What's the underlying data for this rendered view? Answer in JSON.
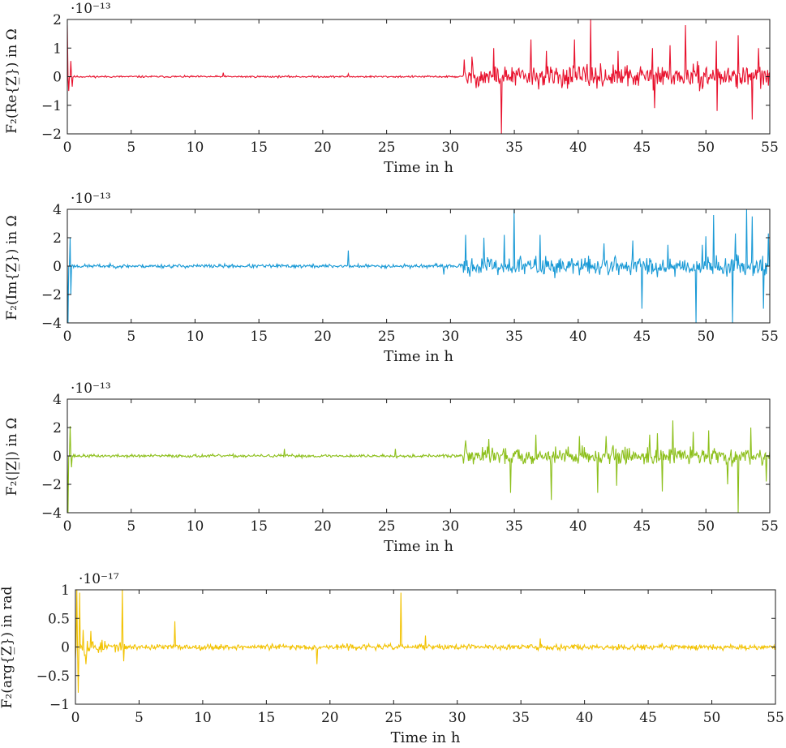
{
  "chart_data": [
    {
      "type": "line",
      "xlabel": "Time in h",
      "ylabel": "F₂(Re{Z̲}) in Ω",
      "y_multiplier": "·10⁻¹³",
      "xlim": [
        0,
        55
      ],
      "ylim": [
        -2,
        2
      ],
      "xticks": [
        0,
        5,
        10,
        15,
        20,
        25,
        30,
        35,
        40,
        45,
        50,
        55
      ],
      "yticks": [
        -2,
        -1,
        0,
        1,
        2
      ],
      "color": "#e8112d",
      "grid": false,
      "noise": {
        "seed": 11,
        "calm_end": 31,
        "calm_amp": 0.03,
        "active_amp": 0.35
      },
      "points": [
        [
          0.02,
          1.8
        ],
        [
          0.1,
          -0.5
        ],
        [
          0.25,
          0.55
        ],
        [
          0.4,
          -0.35
        ],
        [
          12.2,
          0.14
        ],
        [
          22.0,
          0.1
        ],
        [
          31.1,
          0.6
        ],
        [
          31.7,
          0.7
        ],
        [
          33.4,
          1.0
        ],
        [
          34.0,
          -2.0
        ],
        [
          36.3,
          1.3
        ],
        [
          37.5,
          0.9
        ],
        [
          39.7,
          1.3
        ],
        [
          41.0,
          2.0
        ],
        [
          43.1,
          0.9
        ],
        [
          45.8,
          1.0
        ],
        [
          46.0,
          -1.1
        ],
        [
          47.2,
          1.1
        ],
        [
          48.4,
          1.8
        ],
        [
          50.8,
          1.25
        ],
        [
          50.9,
          -1.2
        ],
        [
          52.5,
          1.45
        ],
        [
          53.6,
          -1.5
        ],
        [
          54.1,
          1.0
        ]
      ]
    },
    {
      "type": "line",
      "xlabel": "Time in h",
      "ylabel": "F₂(Im{Z̲}) in Ω",
      "y_multiplier": "·10⁻¹³",
      "xlim": [
        0,
        55
      ],
      "ylim": [
        -4,
        4
      ],
      "xticks": [
        0,
        5,
        10,
        15,
        20,
        25,
        30,
        35,
        40,
        45,
        50,
        55
      ],
      "yticks": [
        -4,
        -2,
        0,
        2,
        4
      ],
      "color": "#1a9ad6",
      "grid": false,
      "noise": {
        "seed": 23,
        "calm_end": 31,
        "calm_amp": 0.12,
        "active_amp": 0.6
      },
      "points": [
        [
          0.05,
          -4.0
        ],
        [
          0.2,
          2.0
        ],
        [
          0.3,
          -2.0
        ],
        [
          22.0,
          1.1
        ],
        [
          29.5,
          -0.6
        ],
        [
          31.2,
          2.2
        ],
        [
          32.6,
          2.0
        ],
        [
          34.2,
          2.2
        ],
        [
          35.0,
          4.0
        ],
        [
          37.0,
          2.2
        ],
        [
          42.0,
          1.6
        ],
        [
          44.3,
          1.8
        ],
        [
          45.0,
          -3.0
        ],
        [
          47.0,
          1.5
        ],
        [
          49.2,
          -4.0
        ],
        [
          49.7,
          1.5
        ],
        [
          50.0,
          2.1
        ],
        [
          50.6,
          3.6
        ],
        [
          52.1,
          -4.0
        ],
        [
          52.3,
          2.3
        ],
        [
          53.2,
          4.0
        ],
        [
          53.6,
          3.5
        ],
        [
          54.5,
          -3.0
        ],
        [
          54.9,
          2.3
        ]
      ]
    },
    {
      "type": "line",
      "xlabel": "Time in h",
      "ylabel": "F₂(|Z̲|) in Ω",
      "y_multiplier": "·10⁻¹³",
      "xlim": [
        0,
        55
      ],
      "ylim": [
        -4,
        4
      ],
      "xticks": [
        0,
        5,
        10,
        15,
        20,
        25,
        30,
        35,
        40,
        45,
        50,
        55
      ],
      "yticks": [
        -4,
        -2,
        0,
        2,
        4
      ],
      "color": "#8cbf1a",
      "grid": false,
      "noise": {
        "seed": 37,
        "calm_end": 31,
        "calm_amp": 0.1,
        "active_amp": 0.55
      },
      "points": [
        [
          0.05,
          -4.0
        ],
        [
          0.2,
          2.1
        ],
        [
          0.35,
          -0.8
        ],
        [
          17.0,
          0.5
        ],
        [
          25.7,
          0.5
        ],
        [
          31.2,
          1.1
        ],
        [
          33.0,
          1.2
        ],
        [
          34.7,
          -2.6
        ],
        [
          36.7,
          1.5
        ],
        [
          37.9,
          -3.1
        ],
        [
          40.1,
          1.4
        ],
        [
          41.5,
          -2.6
        ],
        [
          42.2,
          1.4
        ],
        [
          43.0,
          -2.1
        ],
        [
          45.6,
          1.5
        ],
        [
          46.2,
          1.6
        ],
        [
          46.6,
          -2.5
        ],
        [
          47.4,
          2.5
        ],
        [
          49.0,
          1.7
        ],
        [
          50.2,
          1.8
        ],
        [
          51.7,
          -2.0
        ],
        [
          52.5,
          -4.0
        ],
        [
          53.5,
          2.0
        ],
        [
          54.7,
          -1.8
        ]
      ]
    },
    {
      "type": "line",
      "xlabel": "Time in h",
      "ylabel": "F₂(arg{Z̲}) in rad",
      "y_multiplier": "·10⁻¹⁷",
      "xlim": [
        0,
        55
      ],
      "ylim": [
        -1,
        1
      ],
      "xticks": [
        0,
        5,
        10,
        15,
        20,
        25,
        30,
        35,
        40,
        45,
        50,
        55
      ],
      "yticks": [
        -1,
        -0.5,
        0,
        0.5,
        1
      ],
      "color": "#f2c200",
      "grid": false,
      "noise": {
        "seed": 53,
        "calm_end": 55,
        "calm_amp": 0.045,
        "active_amp": 0.045,
        "early_amp": 0.18,
        "early_end": 4
      },
      "points": [
        [
          0.1,
          1.0
        ],
        [
          0.2,
          -0.8
        ],
        [
          0.35,
          0.95
        ],
        [
          0.6,
          0.3
        ],
        [
          0.8,
          -0.3
        ],
        [
          1.2,
          0.28
        ],
        [
          3.7,
          1.0
        ],
        [
          3.8,
          -0.25
        ],
        [
          7.8,
          0.45
        ],
        [
          19.0,
          -0.3
        ],
        [
          25.6,
          0.95
        ],
        [
          27.5,
          0.2
        ],
        [
          36.5,
          0.15
        ]
      ]
    }
  ]
}
